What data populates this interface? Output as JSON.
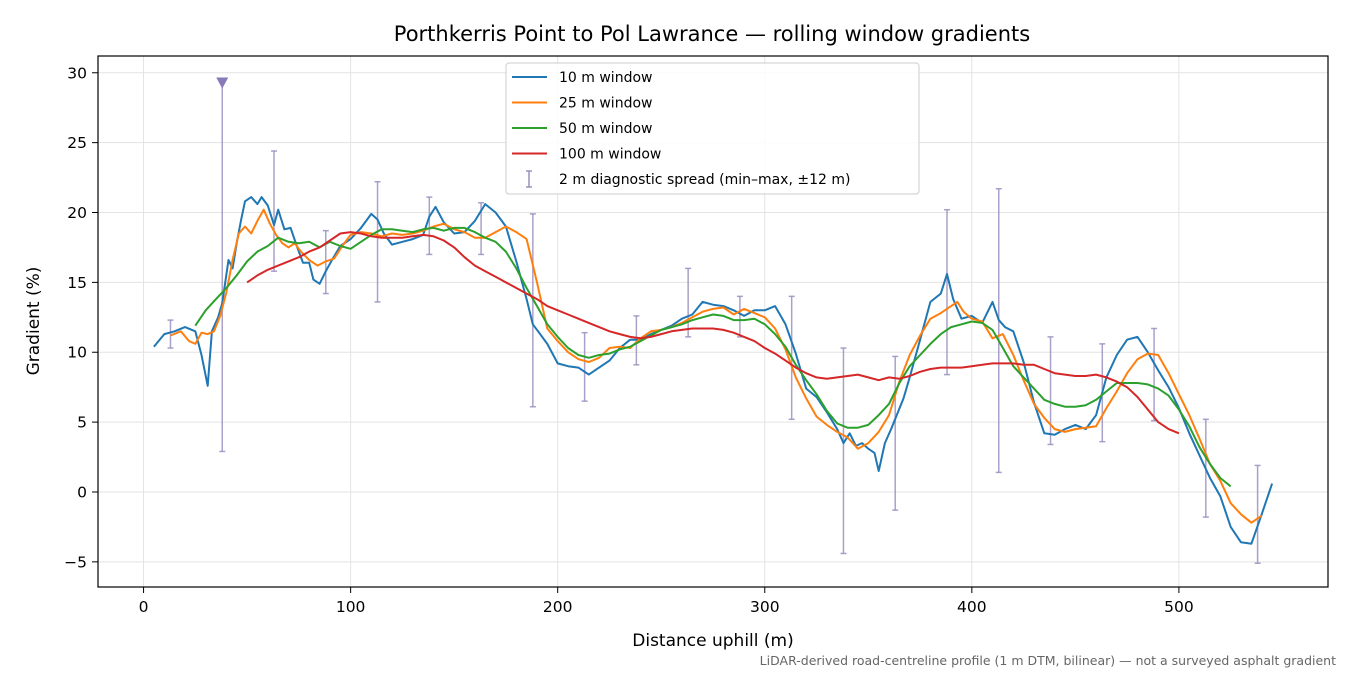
{
  "chart_data": {
    "type": "line",
    "title": "Porthkerris Point to Pol Lawrance — rolling window gradients",
    "xlabel": "Distance uphill (m)",
    "ylabel": "Gradient (%)",
    "footnote": "LiDAR-derived road-centreline profile (1 m DTM, bilinear) — not a surveyed asphalt gradient",
    "xlim": [
      -22,
      572
    ],
    "ylim": [
      -6.8,
      31.2
    ],
    "xticks": [
      0,
      100,
      200,
      300,
      400,
      500
    ],
    "yticks": [
      -5,
      0,
      5,
      10,
      15,
      20,
      25,
      30
    ],
    "grid": true,
    "legend_position": "top-center",
    "series": [
      {
        "name": "10 m window",
        "color": "#1f77b4",
        "x": [
          5,
          10,
          15,
          20,
          25,
          28,
          31,
          33,
          36,
          38,
          41,
          43,
          45,
          47,
          49,
          52,
          55,
          57,
          60,
          63,
          65,
          68,
          71,
          74,
          77,
          80,
          82,
          85,
          88,
          91,
          95,
          100,
          105,
          110,
          113,
          116,
          120,
          125,
          130,
          135,
          138,
          141,
          145,
          150,
          155,
          160,
          165,
          170,
          175,
          180,
          185,
          188,
          191,
          195,
          200,
          205,
          210,
          215,
          220,
          225,
          230,
          235,
          240,
          245,
          250,
          255,
          260,
          265,
          270,
          275,
          280,
          285,
          290,
          295,
          300,
          305,
          310,
          315,
          320,
          325,
          330,
          335,
          338,
          341,
          344,
          347,
          350,
          353,
          355,
          358,
          361,
          364,
          367,
          370,
          375,
          380,
          385,
          388,
          391,
          395,
          400,
          405,
          410,
          413,
          416,
          420,
          425,
          430,
          435,
          440,
          445,
          450,
          455,
          460,
          465,
          470,
          475,
          480,
          485,
          490,
          495,
          500,
          505,
          510,
          515,
          520,
          525,
          530,
          535,
          540,
          545
        ],
        "y": [
          10.4,
          11.3,
          11.5,
          11.8,
          11.5,
          9.8,
          7.6,
          11.5,
          12.5,
          13.5,
          16.6,
          16.0,
          17.8,
          19.4,
          20.8,
          21.1,
          20.6,
          21.1,
          20.5,
          19.1,
          20.2,
          18.8,
          18.9,
          17.6,
          16.4,
          16.4,
          15.2,
          14.9,
          15.8,
          16.6,
          17.6,
          18.1,
          18.9,
          19.9,
          19.5,
          18.5,
          17.7,
          17.9,
          18.1,
          18.4,
          19.7,
          20.4,
          19.3,
          18.5,
          18.6,
          19.4,
          20.6,
          20.0,
          19.0,
          16.5,
          13.8,
          12.0,
          11.4,
          10.6,
          9.2,
          9.0,
          8.9,
          8.4,
          8.9,
          9.4,
          10.3,
          10.9,
          10.9,
          11.3,
          11.6,
          11.9,
          12.4,
          12.7,
          13.6,
          13.4,
          13.3,
          13.0,
          12.6,
          13.0,
          13.0,
          13.3,
          12.0,
          9.9,
          7.4,
          6.8,
          5.7,
          4.5,
          3.5,
          4.2,
          3.3,
          3.5,
          3.1,
          2.8,
          1.5,
          3.5,
          4.5,
          5.6,
          6.7,
          8.2,
          10.9,
          13.6,
          14.2,
          15.6,
          13.8,
          12.4,
          12.6,
          12.1,
          13.6,
          12.3,
          11.8,
          11.5,
          9.3,
          6.4,
          4.2,
          4.1,
          4.5,
          4.8,
          4.5,
          5.5,
          8.2,
          9.8,
          10.9,
          11.1,
          10.0,
          8.7,
          7.5,
          6.0,
          4.2,
          2.6,
          1.0,
          -0.3,
          -2.5,
          -3.6,
          -3.7,
          -1.6,
          0.6
        ]
      },
      {
        "name": "25 m window",
        "color": "#ff7f0e",
        "x": [
          13,
          18,
          22,
          25,
          28,
          31,
          34,
          37,
          40,
          43,
          46,
          49,
          52,
          55,
          58,
          61,
          64,
          67,
          70,
          73,
          76,
          80,
          84,
          88,
          92,
          96,
          100,
          105,
          110,
          115,
          120,
          125,
          130,
          135,
          140,
          145,
          150,
          155,
          160,
          165,
          170,
          175,
          180,
          185,
          190,
          195,
          200,
          205,
          210,
          215,
          220,
          225,
          230,
          235,
          240,
          245,
          250,
          255,
          260,
          265,
          270,
          275,
          280,
          285,
          290,
          295,
          300,
          305,
          310,
          315,
          320,
          325,
          330,
          335,
          340,
          345,
          350,
          355,
          360,
          365,
          370,
          375,
          380,
          385,
          390,
          393,
          396,
          400,
          405,
          410,
          415,
          420,
          425,
          430,
          435,
          440,
          445,
          450,
          455,
          460,
          465,
          470,
          475,
          480,
          485,
          490,
          495,
          500,
          505,
          510,
          515,
          520,
          525,
          530,
          535,
          540
        ],
        "y": [
          11.2,
          11.5,
          10.8,
          10.6,
          11.4,
          11.3,
          11.5,
          12.6,
          14.3,
          16.6,
          18.5,
          19.0,
          18.5,
          19.4,
          20.2,
          19.2,
          18.4,
          17.8,
          17.5,
          17.8,
          17.2,
          16.6,
          16.2,
          16.5,
          16.7,
          17.6,
          18.4,
          18.6,
          18.5,
          18.3,
          18.5,
          18.4,
          18.5,
          18.7,
          19.0,
          19.2,
          18.8,
          18.6,
          18.2,
          18.2,
          18.6,
          19.0,
          18.6,
          18.1,
          15.0,
          11.7,
          10.8,
          10.0,
          9.5,
          9.3,
          9.6,
          10.3,
          10.4,
          10.3,
          11.0,
          11.5,
          11.6,
          11.8,
          12.1,
          12.5,
          12.9,
          13.1,
          13.2,
          12.7,
          13.1,
          12.8,
          12.5,
          11.7,
          10.2,
          8.2,
          6.7,
          5.4,
          4.8,
          4.3,
          3.9,
          3.1,
          3.5,
          4.3,
          5.5,
          7.9,
          9.8,
          11.2,
          12.4,
          12.8,
          13.3,
          13.6,
          12.9,
          12.4,
          12.2,
          11.0,
          11.3,
          9.8,
          8.0,
          6.3,
          5.3,
          4.5,
          4.3,
          4.5,
          4.6,
          4.7,
          6.0,
          7.2,
          8.5,
          9.5,
          9.9,
          9.8,
          8.5,
          7.0,
          5.5,
          3.8,
          2.0,
          0.8,
          -0.8,
          -1.6,
          -2.2,
          -1.7
        ]
      },
      {
        "name": "50 m window",
        "color": "#2ca02c",
        "x": [
          25,
          30,
          35,
          40,
          45,
          50,
          55,
          60,
          65,
          70,
          75,
          80,
          85,
          90,
          95,
          100,
          105,
          110,
          115,
          120,
          125,
          130,
          135,
          140,
          145,
          150,
          155,
          160,
          165,
          170,
          175,
          180,
          185,
          190,
          195,
          200,
          205,
          210,
          215,
          220,
          225,
          230,
          235,
          240,
          245,
          250,
          255,
          260,
          265,
          270,
          275,
          280,
          285,
          290,
          295,
          300,
          305,
          310,
          315,
          320,
          325,
          330,
          335,
          340,
          345,
          350,
          355,
          360,
          365,
          370,
          375,
          380,
          385,
          390,
          395,
          400,
          405,
          410,
          415,
          420,
          425,
          430,
          435,
          440,
          445,
          450,
          455,
          460,
          465,
          470,
          475,
          480,
          485,
          490,
          495,
          500,
          505,
          510,
          515,
          520,
          525
        ],
        "y": [
          11.9,
          13.0,
          13.8,
          14.6,
          15.5,
          16.5,
          17.2,
          17.6,
          18.2,
          17.9,
          17.8,
          17.9,
          17.5,
          17.9,
          17.6,
          17.4,
          17.9,
          18.4,
          18.8,
          18.8,
          18.7,
          18.6,
          18.8,
          18.9,
          18.7,
          18.9,
          18.9,
          18.6,
          18.2,
          17.9,
          17.2,
          16.0,
          14.6,
          13.3,
          12.0,
          11.1,
          10.3,
          9.8,
          9.6,
          9.8,
          9.9,
          10.2,
          10.4,
          10.8,
          11.2,
          11.6,
          11.8,
          12.0,
          12.3,
          12.5,
          12.7,
          12.6,
          12.3,
          12.3,
          12.4,
          12.0,
          11.3,
          10.4,
          9.1,
          8.0,
          7.0,
          5.8,
          4.9,
          4.6,
          4.6,
          4.8,
          5.5,
          6.3,
          7.8,
          9.0,
          9.8,
          10.6,
          11.3,
          11.8,
          12.0,
          12.2,
          12.1,
          11.6,
          10.3,
          9.0,
          8.2,
          7.4,
          6.6,
          6.3,
          6.1,
          6.1,
          6.2,
          6.6,
          7.2,
          7.8,
          7.8,
          7.8,
          7.7,
          7.4,
          6.9,
          5.9,
          4.7,
          3.2,
          2.0,
          1.0,
          0.4
        ]
      },
      {
        "name": "100 m window",
        "color": "#d62728",
        "x": [
          50,
          55,
          60,
          65,
          70,
          75,
          80,
          85,
          90,
          95,
          100,
          105,
          110,
          115,
          120,
          125,
          130,
          135,
          140,
          145,
          150,
          155,
          160,
          165,
          170,
          175,
          180,
          185,
          190,
          195,
          200,
          205,
          210,
          215,
          220,
          225,
          230,
          235,
          240,
          245,
          250,
          255,
          260,
          265,
          270,
          275,
          280,
          285,
          290,
          295,
          300,
          305,
          310,
          315,
          320,
          325,
          330,
          335,
          340,
          345,
          350,
          355,
          360,
          365,
          370,
          375,
          380,
          385,
          390,
          395,
          400,
          405,
          410,
          415,
          420,
          425,
          430,
          435,
          440,
          445,
          450,
          455,
          460,
          465,
          470,
          475,
          480,
          485,
          490,
          495,
          500
        ],
        "y": [
          15.0,
          15.5,
          15.9,
          16.2,
          16.5,
          16.8,
          17.2,
          17.5,
          18.0,
          18.5,
          18.6,
          18.5,
          18.3,
          18.2,
          18.2,
          18.2,
          18.3,
          18.4,
          18.3,
          18.0,
          17.5,
          16.8,
          16.2,
          15.8,
          15.4,
          15.0,
          14.6,
          14.2,
          13.8,
          13.3,
          13.0,
          12.7,
          12.4,
          12.1,
          11.8,
          11.5,
          11.3,
          11.1,
          11.0,
          11.1,
          11.3,
          11.5,
          11.6,
          11.7,
          11.7,
          11.7,
          11.6,
          11.4,
          11.1,
          10.8,
          10.3,
          9.9,
          9.4,
          8.9,
          8.5,
          8.2,
          8.1,
          8.2,
          8.3,
          8.4,
          8.2,
          8.0,
          8.2,
          8.1,
          8.3,
          8.6,
          8.8,
          8.9,
          8.9,
          8.9,
          9.0,
          9.1,
          9.2,
          9.2,
          9.2,
          9.1,
          9.1,
          8.8,
          8.5,
          8.4,
          8.3,
          8.3,
          8.4,
          8.2,
          7.9,
          7.5,
          6.8,
          5.9,
          5.0,
          4.5,
          4.2
        ]
      },
      {
        "name": "2 m diagnostic spread (min–max, ±12 m)",
        "color": "#9a91bf",
        "type": "errorbar",
        "x": [
          13,
          38,
          63,
          88,
          113,
          138,
          163,
          188,
          213,
          238,
          263,
          288,
          313,
          338,
          363,
          388,
          413,
          438,
          463,
          488,
          513,
          538
        ],
        "low": [
          10.3,
          2.9,
          15.8,
          14.2,
          13.6,
          17.0,
          17.0,
          6.1,
          6.5,
          9.1,
          11.1,
          11.1,
          5.2,
          -4.4,
          -1.3,
          8.4,
          1.4,
          3.4,
          3.6,
          5.1,
          -1.8,
          -5.1
        ],
        "high": [
          12.3,
          29.3,
          24.4,
          18.7,
          22.2,
          21.1,
          20.7,
          19.9,
          11.4,
          12.6,
          16.0,
          14.0,
          14.0,
          10.3,
          9.7,
          20.2,
          21.7,
          11.1,
          10.6,
          11.7,
          5.2,
          1.9
        ]
      }
    ]
  }
}
